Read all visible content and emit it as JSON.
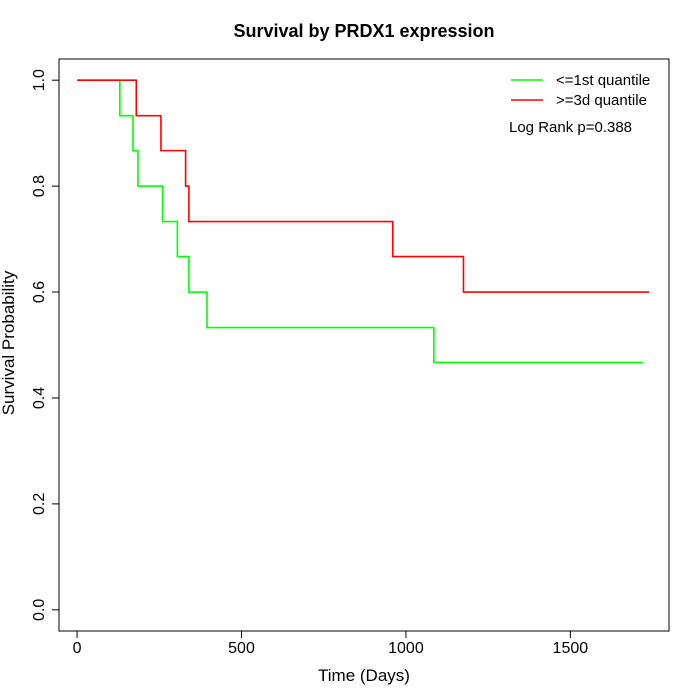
{
  "chart_data": {
    "type": "line",
    "title": "Survival by PRDX1 expression",
    "xlabel": "Time (Days)",
    "ylabel": "Survival Probability",
    "xlim": [
      -55,
      1800
    ],
    "ylim": [
      -0.04,
      1.04
    ],
    "x_ticks": [
      0,
      500,
      1000,
      1500
    ],
    "x_tick_labels": [
      "0",
      "500",
      "1000",
      "1500"
    ],
    "y_ticks": [
      0.0,
      0.2,
      0.4,
      0.6,
      0.8,
      1.0
    ],
    "y_tick_labels": [
      "0.0",
      "0.2",
      "0.4",
      "0.6",
      "0.8",
      "1.0"
    ],
    "legend_position": "top-right",
    "annotation": "Log Rank p=0.388",
    "series": [
      {
        "name": "<=1st quantile",
        "color": "#00ff00",
        "step": true,
        "x": [
          0,
          130,
          170,
          185,
          260,
          305,
          340,
          395,
          1085,
          1720
        ],
        "y": [
          1.0,
          0.933,
          0.867,
          0.8,
          0.733,
          0.667,
          0.6,
          0.533,
          0.467,
          0.467
        ]
      },
      {
        "name": ">=3d quantile",
        "color": "#ff0000",
        "step": true,
        "x": [
          0,
          180,
          255,
          330,
          340,
          960,
          1175,
          1740
        ],
        "y": [
          1.0,
          0.933,
          0.867,
          0.8,
          0.733,
          0.667,
          0.6,
          0.6
        ]
      }
    ]
  }
}
